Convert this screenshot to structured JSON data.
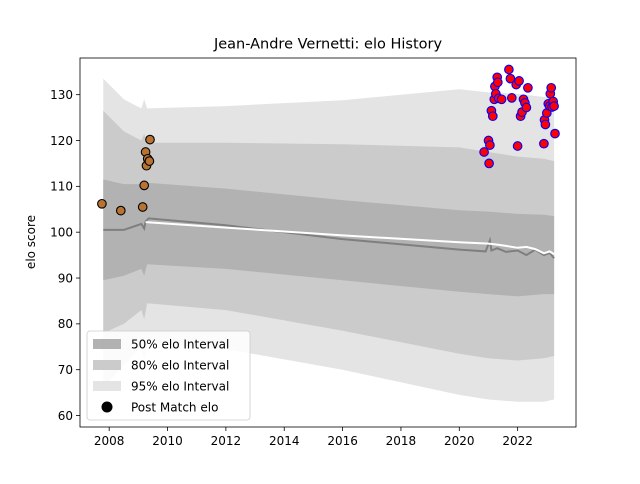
{
  "chart_data": {
    "type": "scatter",
    "title": "Jean-Andre Vernetti: elo History",
    "xlabel": "",
    "ylabel": "elo score",
    "xlim": [
      2007.0,
      2024.0
    ],
    "ylim": [
      57.5,
      138.0
    ],
    "x_ticks": [
      2008,
      2010,
      2012,
      2014,
      2016,
      2018,
      2020,
      2022
    ],
    "y_ticks": [
      60,
      70,
      80,
      90,
      100,
      110,
      120,
      130
    ],
    "grid": false,
    "legend_position": "lower-left",
    "legend": [
      {
        "label": "50% elo Interval",
        "kind": "band",
        "color": "#b2b2b2"
      },
      {
        "label": "80% elo Interval",
        "kind": "band",
        "color": "#cbcbcb"
      },
      {
        "label": "95% elo Interval",
        "kind": "band",
        "color": "#e4e4e4"
      },
      {
        "label": "Post Match elo",
        "kind": "marker",
        "color": "#000000"
      }
    ],
    "series": [
      {
        "kind": "line",
        "color": "#7f7f7f",
        "x": [
          2007.8,
          2008.5,
          2009.1,
          2009.2,
          2009.25,
          2009.35,
          2012,
          2016,
          2020,
          2020.9,
          2021.05,
          2021.1,
          2021.3,
          2021.6,
          2022.0,
          2022.3,
          2022.6,
          2022.9,
          2023.1,
          2023.25
        ],
        "y": [
          100.5,
          100.5,
          101.8,
          100.8,
          102.3,
          103.0,
          101.5,
          98.5,
          96.2,
          95.8,
          98.2,
          96.0,
          96.5,
          95.7,
          96.0,
          95.0,
          96.2,
          95.0,
          95.5,
          94.3
        ]
      },
      {
        "kind": "line",
        "color": "#ffffff",
        "x": [
          2009.25,
          2012,
          2016,
          2020,
          2021.0,
          2021.3,
          2021.6,
          2022.0,
          2022.3,
          2022.6,
          2022.9,
          2023.1,
          2023.25
        ],
        "y": [
          102.2,
          101.0,
          99.3,
          97.8,
          97.5,
          97.3,
          97.0,
          96.6,
          96.8,
          96.3,
          95.4,
          95.8,
          95.2
        ]
      },
      {
        "kind": "band",
        "name": "95% elo Interval",
        "color": "#e4e4e4",
        "x": [
          2007.8,
          2008.5,
          2009.1,
          2009.2,
          2009.3,
          2012,
          2016,
          2020,
          2021.0,
          2022.0,
          2022.9,
          2023.25
        ],
        "upper": [
          133.5,
          129.0,
          127.0,
          129.0,
          127.0,
          127.5,
          128.8,
          131.2,
          130.5,
          130.2,
          129.5,
          129.0
        ],
        "lower": [
          66.0,
          71.0,
          75.0,
          72.0,
          76.0,
          74.5,
          70.0,
          64.5,
          63.5,
          63.0,
          63.0,
          63.5
        ]
      },
      {
        "kind": "band",
        "name": "80% elo Interval",
        "color": "#cbcbcb",
        "x": [
          2007.8,
          2008.5,
          2009.1,
          2009.2,
          2009.3,
          2012,
          2016,
          2020,
          2021.0,
          2022.0,
          2022.9,
          2023.25
        ],
        "upper": [
          126.5,
          122.0,
          120.0,
          121.5,
          119.5,
          119.5,
          119.2,
          118.5,
          117.5,
          116.5,
          116.0,
          115.5
        ],
        "lower": [
          78.0,
          80.0,
          83.0,
          81.0,
          84.5,
          83.0,
          78.5,
          73.5,
          72.5,
          72.0,
          72.5,
          73.0
        ]
      },
      {
        "kind": "band",
        "name": "50% elo Interval",
        "color": "#b2b2b2",
        "x": [
          2007.8,
          2008.5,
          2009.1,
          2009.2,
          2009.3,
          2012,
          2016,
          2020,
          2021.0,
          2022.0,
          2022.9,
          2023.25
        ],
        "upper": [
          111.5,
          110.5,
          110.5,
          111.0,
          110.8,
          109.5,
          107.0,
          104.8,
          104.5,
          104.0,
          103.8,
          103.5
        ],
        "lower": [
          89.5,
          90.5,
          92.0,
          90.5,
          93.0,
          92.0,
          89.5,
          87.0,
          86.5,
          86.0,
          86.5,
          86.5
        ]
      },
      {
        "kind": "points",
        "name": "Post Match elo (early)",
        "fill": "#b87333",
        "stroke": "#000000",
        "x": [
          2007.75,
          2008.4,
          2009.15,
          2009.2,
          2009.25,
          2009.28,
          2009.32,
          2009.38,
          2009.4
        ],
        "y": [
          106.2,
          104.7,
          105.5,
          110.2,
          117.5,
          114.5,
          116.0,
          115.5,
          120.2
        ]
      },
      {
        "kind": "points",
        "name": "Post Match elo (recent)",
        "fill": "#ff0000",
        "stroke": "#0000ff",
        "x": [
          2020.85,
          2021.0,
          2021.05,
          2021.02,
          2021.1,
          2021.15,
          2021.2,
          2021.22,
          2021.25,
          2021.3,
          2021.32,
          2021.35,
          2021.45,
          2021.7,
          2021.75,
          2021.8,
          2021.95,
          2022.05,
          2022.1,
          2022.15,
          2022.2,
          2022.25,
          2022.3,
          2022.35,
          2022.0,
          2022.9,
          2022.92,
          2022.95,
          2023.0,
          2023.05,
          2023.1,
          2023.12,
          2023.15,
          2023.18,
          2023.22,
          2023.25,
          2023.28
        ],
        "y": [
          117.5,
          120.0,
          119.0,
          115.0,
          126.5,
          125.3,
          129.0,
          131.8,
          130.2,
          133.8,
          132.7,
          129.2,
          129.0,
          135.5,
          133.5,
          129.3,
          132.2,
          133.0,
          125.3,
          126.2,
          129.0,
          128.2,
          127.2,
          131.5,
          118.8,
          119.3,
          124.5,
          123.5,
          126.0,
          128.0,
          127.5,
          130.2,
          131.5,
          127.3,
          128.5,
          127.5,
          121.5
        ]
      }
    ]
  }
}
